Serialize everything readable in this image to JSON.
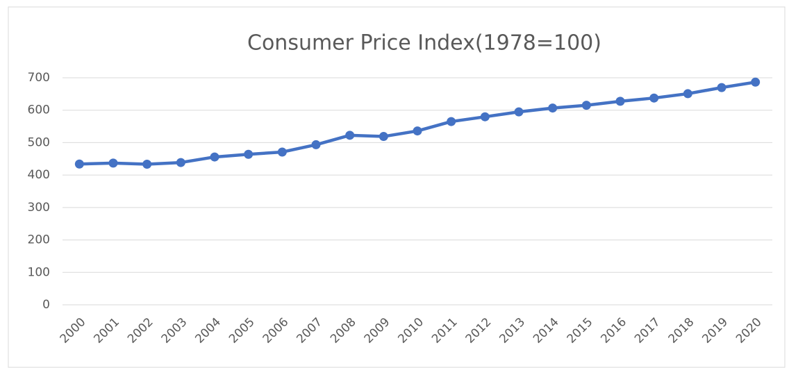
{
  "chart_data": {
    "type": "line",
    "title": "Consumer Price Index(1978=100)",
    "categories": [
      "2000",
      "2001",
      "2002",
      "2003",
      "2004",
      "2005",
      "2006",
      "2007",
      "2008",
      "2009",
      "2010",
      "2011",
      "2012",
      "2013",
      "2014",
      "2015",
      "2016",
      "2017",
      "2018",
      "2019",
      "2020"
    ],
    "series": [
      {
        "name": "Consumer Price Index",
        "color": "#4472c4",
        "values": [
          434,
          437,
          433.5,
          438.7,
          455.8,
          464,
          471,
          493.6,
          522.7,
          519,
          536.1,
          565,
          579.7,
          594.8,
          606.7,
          615.2,
          627.5,
          637.5,
          650.9,
          669.8,
          686.5
        ]
      }
    ],
    "ylim": [
      0,
      700
    ],
    "yticks": [
      0,
      100,
      200,
      300,
      400,
      500,
      600,
      700
    ],
    "grid": true
  }
}
